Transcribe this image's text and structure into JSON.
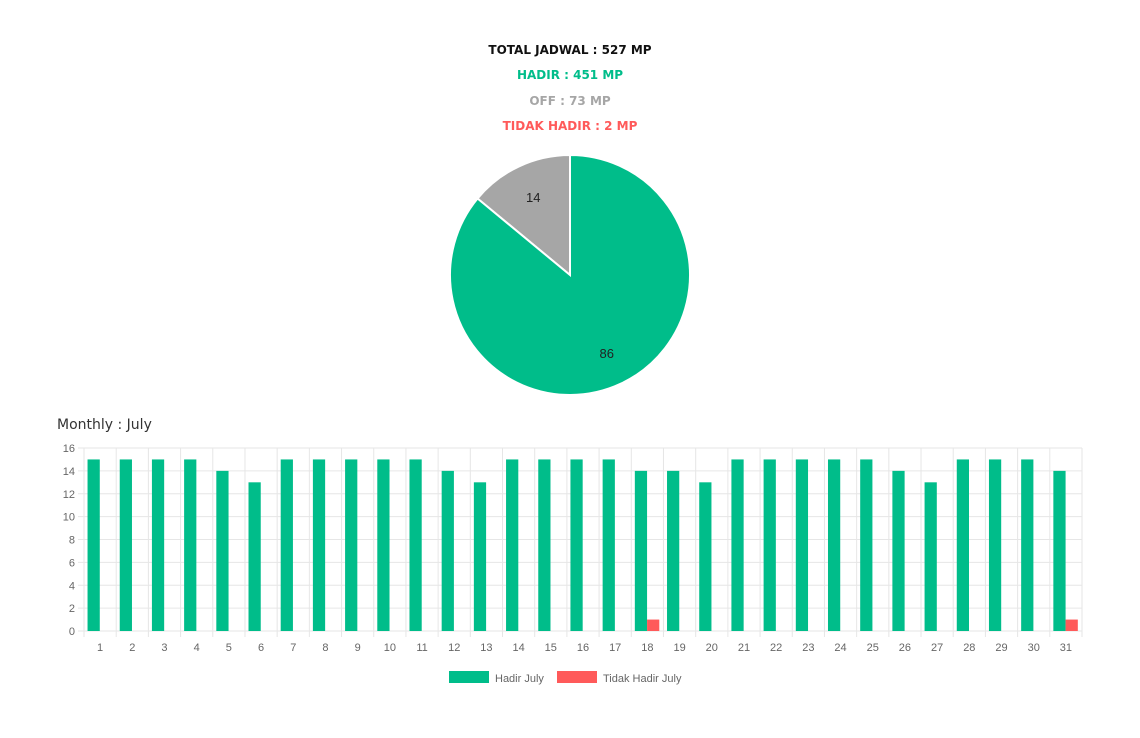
{
  "summary": {
    "total": "TOTAL JADWAL : 527 MP",
    "hadir": "HADIR : 451 MP",
    "off": "OFF : 73 MP",
    "tidak_hadir": "TIDAK HADIR : 2 MP"
  },
  "colors": {
    "hadir": "#00BD8A",
    "off": "#A6A6A6",
    "tidak_hadir": "#FF5A5A",
    "total": "#111111"
  },
  "monthly_title": "Monthly : July",
  "chart_data": [
    {
      "type": "pie",
      "slices": [
        {
          "name": "Off",
          "value": 14,
          "label": "14",
          "color": "#A6A6A6"
        },
        {
          "name": "Hadir",
          "value": 86,
          "label": "86",
          "color": "#00BD8A"
        }
      ]
    },
    {
      "type": "bar",
      "title": "Monthly : July",
      "categories": [
        "1",
        "2",
        "3",
        "4",
        "5",
        "6",
        "7",
        "8",
        "9",
        "10",
        "11",
        "12",
        "13",
        "14",
        "15",
        "16",
        "17",
        "18",
        "19",
        "20",
        "21",
        "22",
        "23",
        "24",
        "25",
        "26",
        "27",
        "28",
        "29",
        "30",
        "31"
      ],
      "series": [
        {
          "name": "Hadir July",
          "color": "#00BD8A",
          "values": [
            15,
            15,
            15,
            15,
            14,
            13,
            15,
            15,
            15,
            15,
            15,
            14,
            13,
            15,
            15,
            15,
            15,
            14,
            14,
            13,
            15,
            15,
            15,
            15,
            15,
            14,
            13,
            15,
            15,
            15,
            14
          ]
        },
        {
          "name": "Tidak Hadir July",
          "color": "#FF5A5A",
          "values": [
            0,
            0,
            0,
            0,
            0,
            0,
            0,
            0,
            0,
            0,
            0,
            0,
            0,
            0,
            0,
            0,
            0,
            1,
            0,
            0,
            0,
            0,
            0,
            0,
            0,
            0,
            0,
            0,
            0,
            0,
            1
          ]
        }
      ],
      "ylim": [
        0,
        16
      ],
      "yticks": [
        0,
        2,
        4,
        6,
        8,
        10,
        12,
        14,
        16
      ],
      "grid": true,
      "legend": "bottom"
    }
  ]
}
